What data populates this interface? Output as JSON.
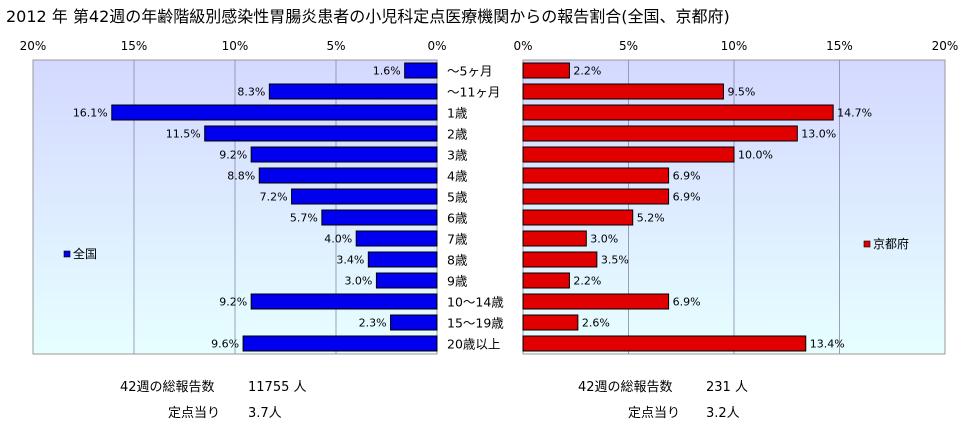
{
  "title": "2012 年 第42週の年齢階級別感染性胃腸炎患者の小児科定点医療機関からの報告割合(全国、京都府)",
  "colors": {
    "left_bar": "#0000ee",
    "right_bar": "#e00000",
    "plot_bg_top": "#d4d8ff",
    "plot_bg_bottom": "#e6ffff",
    "grid": "#8888aa"
  },
  "chart_data": [
    {
      "type": "bar",
      "orientation": "horizontal",
      "direction": "right-to-left",
      "series": [
        {
          "name": "全国",
          "values": [
            1.6,
            8.3,
            16.1,
            11.5,
            9.2,
            8.8,
            7.2,
            5.7,
            4.0,
            3.4,
            3.0,
            9.2,
            2.3,
            9.6
          ]
        }
      ],
      "categories": [
        "～5ヶ月",
        "～11ヶ月",
        "1歳",
        "2歳",
        "3歳",
        "4歳",
        "5歳",
        "6歳",
        "7歳",
        "8歳",
        "9歳",
        "10～14歳",
        "15～19歳",
        "20歳以上"
      ],
      "data_labels": [
        "1.6%",
        "8.3%",
        "16.1%",
        "11.5%",
        "9.2%",
        "8.8%",
        "7.2%",
        "5.7%",
        "4.0%",
        "3.4%",
        "3.0%",
        "9.2%",
        "2.3%",
        "9.6%"
      ],
      "xlim": [
        0,
        20
      ],
      "ticks": [
        "20%",
        "15%",
        "10%",
        "5%",
        "0%"
      ],
      "legend": "left",
      "grid": true
    },
    {
      "type": "bar",
      "orientation": "horizontal",
      "direction": "left-to-right",
      "series": [
        {
          "name": "京都府",
          "values": [
            2.2,
            9.5,
            14.7,
            13.0,
            10.0,
            6.9,
            6.9,
            5.2,
            3.0,
            3.5,
            2.2,
            6.9,
            2.6,
            13.4
          ]
        }
      ],
      "categories": [
        "～5ヶ月",
        "～11ヶ月",
        "1歳",
        "2歳",
        "3歳",
        "4歳",
        "5歳",
        "6歳",
        "7歳",
        "8歳",
        "9歳",
        "10～14歳",
        "15～19歳",
        "20歳以上"
      ],
      "data_labels": [
        "2.2%",
        "9.5%",
        "14.7%",
        "13.0%",
        "10.0%",
        "6.9%",
        "6.9%",
        "5.2%",
        "3.0%",
        "3.5%",
        "2.2%",
        "6.9%",
        "2.6%",
        "13.4%"
      ],
      "xlim": [
        0,
        20
      ],
      "ticks": [
        "0%",
        "5%",
        "10%",
        "15%",
        "20%"
      ],
      "legend": "right",
      "grid": true
    }
  ],
  "footer": {
    "left": {
      "total_label": "42週の総報告数",
      "total_value": "11755 人",
      "per_point_label": "定点当り",
      "per_point_value": "3.7人"
    },
    "right": {
      "total_label": "42週の総報告数",
      "total_value": "231 人",
      "per_point_label": "定点当り",
      "per_point_value": "3.2人"
    }
  }
}
